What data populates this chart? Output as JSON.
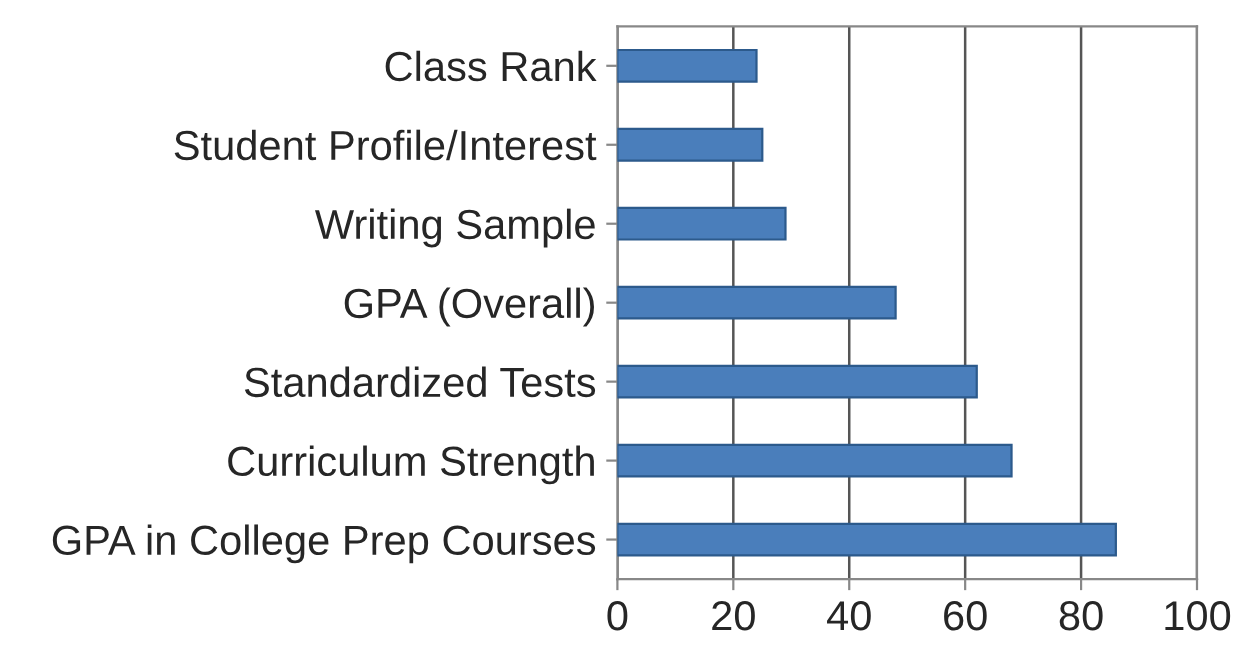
{
  "chart_data": {
    "type": "bar",
    "orientation": "horizontal",
    "categories": [
      "Class Rank",
      "Student Profile/Interest",
      "Writing Sample",
      "GPA (Overall)",
      "Standardized Tests",
      "Curriculum Strength",
      "GPA in College Prep Courses"
    ],
    "values": [
      24,
      25,
      29,
      48,
      62,
      68,
      86
    ],
    "color": "#4a7ebb",
    "xlim": [
      0,
      100
    ],
    "xticks": [
      0,
      20,
      40,
      60,
      80,
      100
    ],
    "grid": "x"
  }
}
